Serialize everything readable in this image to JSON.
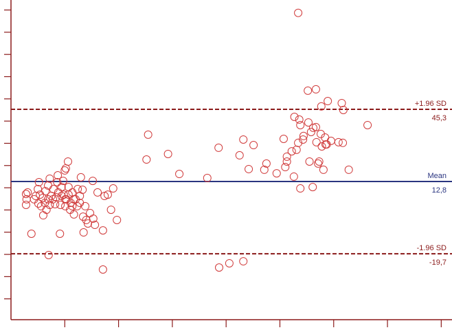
{
  "chart_data": {
    "type": "scatter",
    "color": "#d03a3a",
    "axis_color": "#8b1a1a",
    "xlim": [
      0,
      82
    ],
    "ylim": [
      -50,
      94.5
    ],
    "xticks": [
      10,
      20,
      30,
      40,
      50,
      60,
      70,
      80
    ],
    "yticks": [
      -40,
      -30,
      -20,
      -10,
      0,
      10,
      20,
      30,
      40,
      50,
      60,
      70,
      80,
      90
    ],
    "x": [
      2.8,
      2.9,
      2.8,
      3.8,
      4.3,
      4.6,
      5.0,
      5.2,
      5.4,
      5.1,
      5.6,
      5.9,
      6.0,
      6.3,
      6.4,
      6.6,
      6.9,
      6.9,
      7.2,
      7.2,
      7.5,
      7.8,
      7.9,
      8.2,
      8.4,
      8.6,
      8.7,
      8.8,
      9.1,
      9.2,
      9.4,
      9.4,
      9.7,
      9.8,
      10.0,
      10.1,
      10.2,
      10.3,
      10.6,
      10.7,
      10.7,
      11.0,
      11.1,
      11.4,
      11.4,
      11.7,
      12.0,
      12.3,
      12.4,
      12.8,
      13.0,
      13.3,
      13.4,
      13.5,
      13.8,
      14.0,
      14.3,
      14.7,
      15.2,
      15.3,
      15.6,
      16.1,
      17.1,
      17.4,
      18.0,
      18.6,
      19.0,
      19.7,
      7.0,
      17.1,
      3.1,
      10.1,
      11.7,
      12.8,
      25.5,
      25.2,
      29.2,
      31.3,
      36.5,
      38.6,
      38.7,
      40.6,
      43.2,
      42.5,
      43.2,
      44.2,
      45.1,
      47.1,
      47.5,
      49.4,
      50.7,
      51.0,
      51.3,
      51.3,
      53.4,
      52.6,
      52.7,
      53.8,
      53.8,
      53.1,
      53.4,
      53.6,
      54.3,
      54.4,
      55.2,
      55.3,
      55.5,
      55.8,
      56.1,
      56.2,
      56.7,
      56.8,
      57.1,
      57.3,
      57.6,
      57.7,
      57.8,
      58.1,
      58.4,
      58.5,
      58.7,
      58.9,
      59.5,
      60.9,
      61.5,
      61.7,
      61.8,
      62.8,
      66.3,
      52.2,
      56.7
    ],
    "y": [
      7.2,
      4.8,
      2.3,
      -10.7,
      4.8,
      6.3,
      9.4,
      12.5,
      6.9,
      2.9,
      1.7,
      5.4,
      -2.4,
      3.2,
      8.5,
      0.1,
      11.0,
      4.8,
      14.1,
      2.3,
      6.3,
      4.8,
      9.4,
      2.6,
      5.7,
      12.5,
      15.6,
      7.9,
      -10.7,
      2.3,
      10.3,
      6.3,
      13.1,
      6.9,
      17.8,
      1.7,
      18.7,
      4.8,
      21.8,
      10.3,
      6.9,
      0.1,
      3.2,
      1.7,
      7.9,
      -2.0,
      4.8,
      1.7,
      9.4,
      3.2,
      14.7,
      9.1,
      -3.0,
      -10.1,
      1.7,
      -4.5,
      -6.1,
      -1.4,
      13.1,
      -3.9,
      -6.7,
      7.9,
      -9.2,
      6.3,
      6.9,
      0.1,
      9.7,
      -4.5,
      -20.3,
      -26.8,
      7.9,
      4.8,
      4.8,
      6.3,
      33.9,
      22.7,
      25.2,
      16.2,
      14.4,
      28.0,
      -25.9,
      -24.0,
      -23.1,
      24.6,
      31.7,
      18.4,
      29.2,
      18.1,
      20.9,
      16.5,
      32.0,
      19.3,
      21.8,
      24.0,
      88.7,
      15.0,
      41.9,
      38.2,
      9.7,
      27.1,
      30.2,
      40.7,
      31.7,
      33.3,
      53.7,
      39.4,
      21.8,
      35.1,
      10.3,
      37.0,
      54.3,
      30.5,
      20.9,
      21.8,
      34.2,
      46.6,
      28.6,
      18.1,
      32.6,
      29.5,
      29.5,
      49.0,
      31.1,
      30.5,
      48.1,
      30.2,
      45.0,
      18.1,
      38.2,
      26.4,
      37.3
    ],
    "reference_lines": [
      {
        "label": "+1.96 SD",
        "value": 45.3,
        "value_label": "45,3",
        "color": "#8b1a1a",
        "style": "dashed"
      },
      {
        "label": "Mean",
        "value": 12.8,
        "value_label": "12,8",
        "color": "#2a3580",
        "style": "solid"
      },
      {
        "label": "-1.96 SD",
        "value": -19.7,
        "value_label": "-19,7",
        "color": "#8b1a1a",
        "style": "dashed"
      }
    ]
  }
}
